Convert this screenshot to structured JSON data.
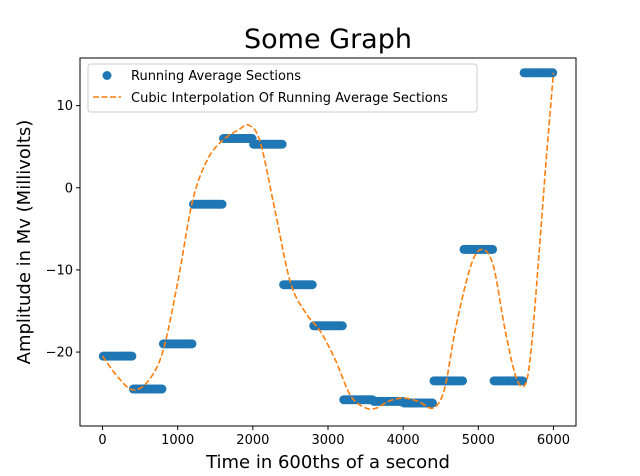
{
  "chart_data": {
    "type": "scatter",
    "title": "Some Graph",
    "xlabel": "Time in 600ths of a second",
    "ylabel": "Amplitude in Mv (Millivolts)",
    "xlim": [
      -300,
      6300
    ],
    "ylim": [
      -29,
      15.8
    ],
    "xticks": [
      0,
      1000,
      2000,
      3000,
      4000,
      5000,
      6000
    ],
    "yticks": [
      -20,
      -10,
      0,
      10
    ],
    "grid": false,
    "legend_position": "top-left",
    "series": [
      {
        "name": "Running Average Sections",
        "kind": "scatter",
        "color": "#1f77b4",
        "sections": [
          {
            "x_start": 0,
            "x_end": 400,
            "y": -20.5
          },
          {
            "x_start": 400,
            "x_end": 800,
            "y": -24.5
          },
          {
            "x_start": 800,
            "x_end": 1200,
            "y": -19.0
          },
          {
            "x_start": 1200,
            "x_end": 1600,
            "y": -2.0
          },
          {
            "x_start": 1600,
            "x_end": 2000,
            "y": 6.0
          },
          {
            "x_start": 2000,
            "x_end": 2400,
            "y": 5.3
          },
          {
            "x_start": 2400,
            "x_end": 2800,
            "y": -11.8
          },
          {
            "x_start": 2800,
            "x_end": 3200,
            "y": -16.8
          },
          {
            "x_start": 3200,
            "x_end": 3600,
            "y": -25.8
          },
          {
            "x_start": 3600,
            "x_end": 4000,
            "y": -26.0
          },
          {
            "x_start": 4000,
            "x_end": 4400,
            "y": -26.2
          },
          {
            "x_start": 4400,
            "x_end": 4800,
            "y": -23.5
          },
          {
            "x_start": 4800,
            "x_end": 5200,
            "y": -7.5
          },
          {
            "x_start": 5200,
            "x_end": 5600,
            "y": -23.5
          },
          {
            "x_start": 5600,
            "x_end": 6000,
            "y": 14.0
          }
        ]
      },
      {
        "name": "Cubic Interpolation Of Running Average Sections",
        "kind": "line",
        "style": "dashed",
        "color": "#ff7f0e",
        "x": [
          0,
          200,
          400,
          600,
          800,
          1000,
          1200,
          1400,
          1600,
          1800,
          1950,
          2100,
          2300,
          2500,
          2700,
          2900,
          3100,
          3300,
          3500,
          3650,
          3800,
          4000,
          4200,
          4400,
          4550,
          4700,
          4900,
          5050,
          5200,
          5350,
          5500,
          5620,
          5700,
          5800,
          5900,
          6000
        ],
        "y": [
          -20.5,
          -23.0,
          -24.6,
          -23.6,
          -20.0,
          -11.5,
          -1.5,
          3.5,
          5.8,
          7.0,
          7.6,
          5.5,
          -3.0,
          -11.5,
          -15.2,
          -17.5,
          -21.0,
          -25.3,
          -26.8,
          -26.8,
          -26.0,
          -25.6,
          -26.0,
          -26.8,
          -24.5,
          -17.0,
          -9.5,
          -7.5,
          -9.5,
          -17.0,
          -23.0,
          -24.0,
          -20.0,
          -9.0,
          3.0,
          14.0
        ]
      }
    ]
  }
}
